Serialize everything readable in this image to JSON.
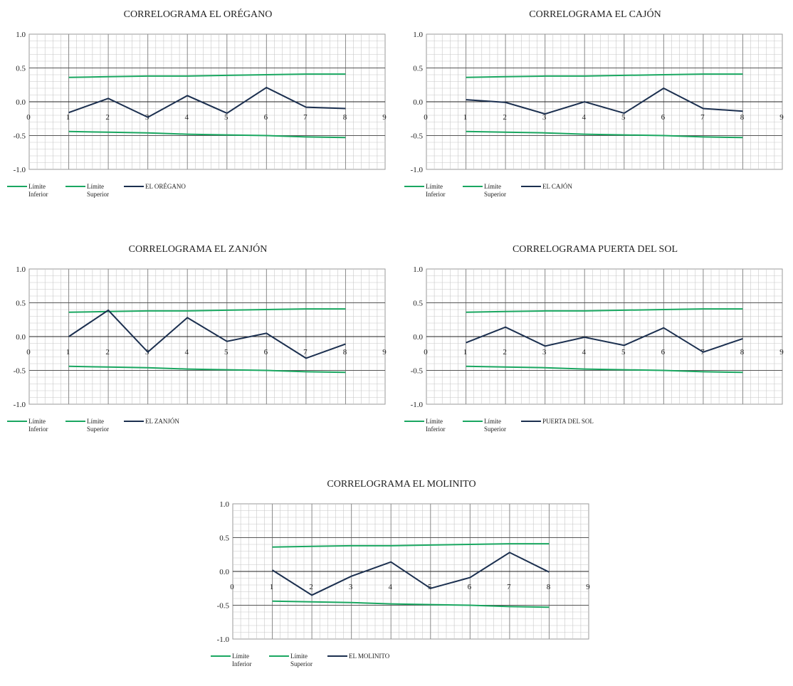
{
  "chart_data": [
    {
      "type": "line",
      "title": "CORRELOGRAMA EL ORÉGANO",
      "x": [
        1,
        2,
        3,
        4,
        5,
        6,
        7,
        8
      ],
      "xlim": [
        0,
        9
      ],
      "ylim": [
        -1.0,
        1.0
      ],
      "xticks": [
        "0",
        "1",
        "2",
        "3",
        "4",
        "5",
        "6",
        "7",
        "8",
        "9"
      ],
      "yticks": [
        "1.0",
        "0.5",
        "0.0",
        "-0.5",
        "-1.0"
      ],
      "grid": true,
      "legend": "bottom",
      "series": [
        {
          "name": "Límite Inferior",
          "legend": [
            "Límite",
            "Inferior"
          ],
          "color": "#1aa761",
          "values": [
            -0.44,
            -0.45,
            -0.46,
            -0.48,
            -0.49,
            -0.5,
            -0.52,
            -0.53
          ]
        },
        {
          "name": "Límite Superior",
          "legend": [
            "Límite",
            "Superior"
          ],
          "color": "#1aa761",
          "values": [
            0.36,
            0.37,
            0.38,
            0.38,
            0.39,
            0.4,
            0.41,
            0.41
          ]
        },
        {
          "name": "EL ORÉGANO",
          "legend": [
            "EL ORÉGANO"
          ],
          "color": "#1b2f4f",
          "values": [
            -0.16,
            0.05,
            -0.23,
            0.09,
            -0.17,
            0.21,
            -0.08,
            -0.1
          ]
        }
      ]
    },
    {
      "type": "line",
      "title": "CORRELOGRAMA EL CAJÓN",
      "x": [
        1,
        2,
        3,
        4,
        5,
        6,
        7,
        8
      ],
      "xlim": [
        0,
        9
      ],
      "ylim": [
        -1.0,
        1.0
      ],
      "xticks": [
        "0",
        "1",
        "2",
        "3",
        "4",
        "5",
        "6",
        "7",
        "8",
        "9"
      ],
      "yticks": [
        "1.0",
        "0.5",
        "0.0",
        "-0.5",
        "-1.0"
      ],
      "grid": true,
      "legend": "bottom",
      "series": [
        {
          "name": "Límite Inferior",
          "legend": [
            "Límite",
            "Inferior"
          ],
          "color": "#1aa761",
          "values": [
            -0.44,
            -0.45,
            -0.46,
            -0.48,
            -0.49,
            -0.5,
            -0.52,
            -0.53
          ]
        },
        {
          "name": "Límite Superior",
          "legend": [
            "Límite",
            "Superior"
          ],
          "color": "#1aa761",
          "values": [
            0.36,
            0.37,
            0.38,
            0.38,
            0.39,
            0.4,
            0.41,
            0.41
          ]
        },
        {
          "name": "EL CAJÓN",
          "legend": [
            "EL CAJÓN"
          ],
          "color": "#1b2f4f",
          "values": [
            0.03,
            -0.01,
            -0.18,
            0.0,
            -0.17,
            0.2,
            -0.1,
            -0.14
          ]
        }
      ]
    },
    {
      "type": "line",
      "title": "CORRELOGRAMA EL ZANJÓN",
      "x": [
        1,
        2,
        3,
        4,
        5,
        6,
        7,
        8
      ],
      "xlim": [
        0,
        9
      ],
      "ylim": [
        -1.0,
        1.0
      ],
      "xticks": [
        "0",
        "1",
        "2",
        "3",
        "4",
        "5",
        "6",
        "7",
        "8",
        "9"
      ],
      "yticks": [
        "1.0",
        "0.5",
        "0.0",
        "-0.5",
        "-1.0"
      ],
      "grid": true,
      "legend": "bottom",
      "series": [
        {
          "name": "Límite Inferior",
          "legend": [
            "Límite",
            "Inferior"
          ],
          "color": "#1aa761",
          "values": [
            -0.44,
            -0.45,
            -0.46,
            -0.48,
            -0.49,
            -0.5,
            -0.52,
            -0.53
          ]
        },
        {
          "name": "Límite Superior",
          "legend": [
            "Límite",
            "Superior"
          ],
          "color": "#1aa761",
          "values": [
            0.36,
            0.37,
            0.38,
            0.38,
            0.39,
            0.4,
            0.41,
            0.41
          ]
        },
        {
          "name": "EL ZANJÓN",
          "legend": [
            "EL ZANJÓN"
          ],
          "color": "#1b2f4f",
          "values": [
            0.0,
            0.39,
            -0.23,
            0.28,
            -0.07,
            0.05,
            -0.32,
            -0.11
          ]
        }
      ]
    },
    {
      "type": "line",
      "title": "CORRELOGRAMA PUERTA DEL SOL",
      "x": [
        1,
        2,
        3,
        4,
        5,
        6,
        7,
        8
      ],
      "xlim": [
        0,
        9
      ],
      "ylim": [
        -1.0,
        1.0
      ],
      "xticks": [
        "0",
        "1",
        "2",
        "3",
        "4",
        "5",
        "6",
        "7",
        "8",
        "9"
      ],
      "yticks": [
        "1.0",
        "0.5",
        "0.0",
        "-0.5",
        "-1.0"
      ],
      "grid": true,
      "legend": "bottom",
      "series": [
        {
          "name": "Límite Inferior",
          "legend": [
            "Límite",
            "Inferior"
          ],
          "color": "#1aa761",
          "values": [
            -0.44,
            -0.45,
            -0.46,
            -0.48,
            -0.49,
            -0.5,
            -0.52,
            -0.53
          ]
        },
        {
          "name": "Límite Superior",
          "legend": [
            "Límite",
            "Superior"
          ],
          "color": "#1aa761",
          "values": [
            0.36,
            0.37,
            0.38,
            0.38,
            0.39,
            0.4,
            0.41,
            0.41
          ]
        },
        {
          "name": "PUERTA DEL SOL",
          "legend": [
            "PUERTA DEL SOL"
          ],
          "color": "#1b2f4f",
          "values": [
            -0.09,
            0.14,
            -0.14,
            -0.01,
            -0.13,
            0.13,
            -0.23,
            -0.03
          ]
        }
      ]
    },
    {
      "type": "line",
      "title": "CORRELOGRAMA EL MOLINITO",
      "x": [
        1,
        2,
        3,
        4,
        5,
        6,
        7,
        8
      ],
      "xlim": [
        0,
        9
      ],
      "ylim": [
        -1.0,
        1.0
      ],
      "xticks": [
        "0",
        "1",
        "2",
        "3",
        "4",
        "5",
        "6",
        "7",
        "8",
        "9"
      ],
      "yticks": [
        "1.0",
        "0.5",
        "0.0",
        "-0.5",
        "-1.0"
      ],
      "grid": true,
      "legend": "bottom",
      "series": [
        {
          "name": "Límite Inferior",
          "legend": [
            "Límite",
            "Inferior"
          ],
          "color": "#1aa761",
          "values": [
            -0.44,
            -0.45,
            -0.46,
            -0.48,
            -0.49,
            -0.5,
            -0.52,
            -0.53
          ]
        },
        {
          "name": "Límite Superior",
          "legend": [
            "Límite",
            "Superior"
          ],
          "color": "#1aa761",
          "values": [
            0.36,
            0.37,
            0.38,
            0.38,
            0.39,
            0.4,
            0.41,
            0.41
          ]
        },
        {
          "name": "EL MOLINITO",
          "legend": [
            "EL MOLINITO"
          ],
          "color": "#1b2f4f",
          "values": [
            0.02,
            -0.35,
            -0.07,
            0.14,
            -0.25,
            -0.09,
            0.28,
            -0.01
          ]
        }
      ]
    }
  ]
}
